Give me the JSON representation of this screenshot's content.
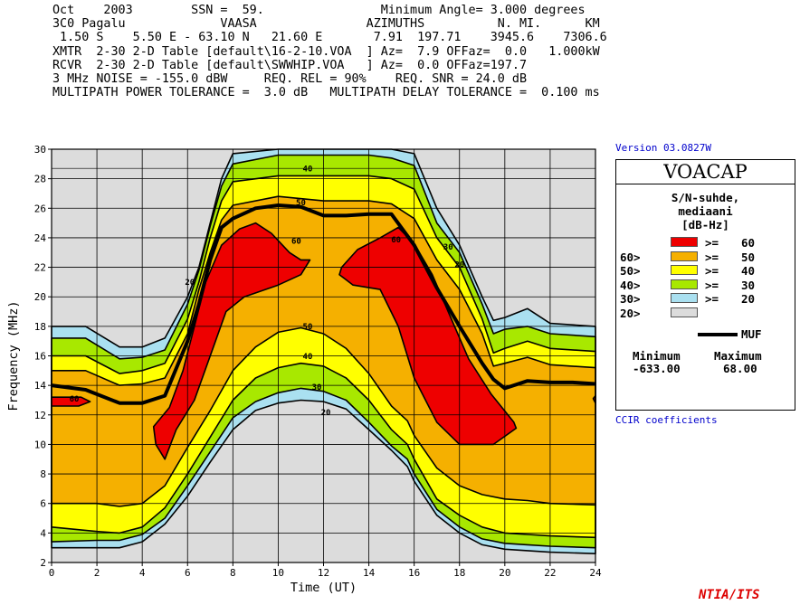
{
  "header": {
    "lines": [
      "Oct    2003        SSN =  59.                Minimum Angle= 3.000 degrees",
      "3C0 Pagalu             VAASA               AZIMUTHS          N. MI.      KM",
      " 1.50 S    5.50 E - 63.10 N   21.60 E       7.91  197.71    3945.6    7306.6",
      "XMTR  2-30 2-D Table [default\\16-2-10.VOA  ] Az=  7.9 OFFaz=  0.0   1.000kW",
      "RCVR  2-30 2-D Table [default\\SWWHIP.VOA   ] Az=  0.0 OFFaz=197.7",
      "3 MHz NOISE = -155.0 dBW     REQ. REL = 90%    REQ. SNR = 24.0 dB",
      "MULTIPATH POWER TOLERANCE =  3.0 dB   MULTIPATH DELAY TOLERANCE =  0.100 ms"
    ]
  },
  "side": {
    "version": "Version 03.0827W",
    "ccir": "CCIR coefficients",
    "ntia": "NTIA/ITS"
  },
  "legend": {
    "title": "VOACAP",
    "caption1": "S/N-suhde,",
    "caption2": "mediaani",
    "caption3": "[dB-Hz]",
    "rows": [
      {
        "left": "",
        "ge": ">=",
        "right": "60",
        "color": "#ee0000"
      },
      {
        "left": "60>",
        "ge": ">=",
        "right": "50",
        "color": "#f5b000"
      },
      {
        "left": "50>",
        "ge": ">=",
        "right": "40",
        "color": "#ffff00"
      },
      {
        "left": "40>",
        "ge": ">=",
        "right": "30",
        "color": "#a8e800"
      },
      {
        "left": "30>",
        "ge": ">=",
        "right": "20",
        "color": "#aae0f0"
      },
      {
        "left": "20>",
        "ge": "",
        "right": "",
        "color": "#dcdcdc"
      }
    ],
    "muf_label": "MUF",
    "min_label": "Minimum",
    "max_label": "Maximum",
    "min_value": "-633.00",
    "max_value": "68.00"
  },
  "chart_data": {
    "type": "heatmap",
    "xlabel": "Time (UT)",
    "ylabel": "Frequency (MHz)",
    "xlim": [
      0,
      24
    ],
    "ylim": [
      2,
      30
    ],
    "x_ticks": [
      0,
      2,
      4,
      6,
      8,
      10,
      12,
      14,
      16,
      18,
      20,
      22,
      24
    ],
    "y_ticks": [
      2,
      4,
      6,
      8,
      10,
      12,
      14,
      16,
      18,
      20,
      22,
      24,
      26,
      28,
      30
    ],
    "colors": {
      "bg": "#dcdcdc",
      "c20": "#aae0f0",
      "c30": "#a8e800",
      "c40": "#ffff00",
      "c50": "#f5b000",
      "c60": "#ee0000",
      "muf": "#000000"
    },
    "regions": [
      {
        "level": "20",
        "color_key": "c20",
        "upper": [
          [
            0,
            18
          ],
          [
            1.5,
            18
          ],
          [
            3,
            16.6
          ],
          [
            4,
            16.6
          ],
          [
            5,
            17.2
          ],
          [
            6,
            20
          ],
          [
            6.5,
            22
          ],
          [
            7,
            25
          ],
          [
            7.5,
            28
          ],
          [
            8,
            29.7
          ],
          [
            10,
            30
          ],
          [
            12,
            30
          ],
          [
            14,
            30
          ],
          [
            15,
            30
          ],
          [
            16,
            29.7
          ],
          [
            17,
            26
          ],
          [
            18,
            23.5
          ],
          [
            19,
            20
          ],
          [
            19.5,
            18.4
          ],
          [
            20,
            18.6
          ],
          [
            21,
            19.2
          ],
          [
            22,
            18.2
          ],
          [
            24,
            18
          ]
        ],
        "lower": [
          [
            0,
            3
          ],
          [
            2,
            3
          ],
          [
            3,
            3
          ],
          [
            4,
            3.4
          ],
          [
            5,
            4.6
          ],
          [
            6,
            6.5
          ],
          [
            7,
            8.8
          ],
          [
            8,
            11
          ],
          [
            9,
            12.3
          ],
          [
            10,
            12.8
          ],
          [
            11,
            13
          ],
          [
            12,
            12.9
          ],
          [
            13,
            12.4
          ],
          [
            14,
            11
          ],
          [
            15,
            9.6
          ],
          [
            15.7,
            8.5
          ],
          [
            16,
            7.5
          ],
          [
            17,
            5.2
          ],
          [
            18,
            4
          ],
          [
            19,
            3.2
          ],
          [
            20,
            2.9
          ],
          [
            21,
            2.8
          ],
          [
            22,
            2.7
          ],
          [
            24,
            2.6
          ]
        ]
      },
      {
        "level": "30",
        "color_key": "c30",
        "upper": [
          [
            0,
            17.2
          ],
          [
            1.5,
            17.2
          ],
          [
            3,
            15.8
          ],
          [
            4,
            15.9
          ],
          [
            5,
            16.4
          ],
          [
            6,
            19.5
          ],
          [
            6.5,
            21.8
          ],
          [
            7,
            24.8
          ],
          [
            7.5,
            27.5
          ],
          [
            8,
            29
          ],
          [
            10,
            29.6
          ],
          [
            12,
            29.6
          ],
          [
            14,
            29.6
          ],
          [
            15,
            29.4
          ],
          [
            16,
            28.9
          ],
          [
            17,
            25
          ],
          [
            18,
            23
          ],
          [
            19,
            19.5
          ],
          [
            19.5,
            17.5
          ],
          [
            20,
            17.8
          ],
          [
            21,
            18
          ],
          [
            22,
            17.5
          ],
          [
            24,
            17.3
          ]
        ],
        "lower": [
          [
            0,
            3.4
          ],
          [
            2,
            3.5
          ],
          [
            3,
            3.5
          ],
          [
            4,
            3.9
          ],
          [
            5,
            5
          ],
          [
            6,
            7.2
          ],
          [
            7,
            9.5
          ],
          [
            8,
            11.8
          ],
          [
            9,
            12.9
          ],
          [
            10,
            13.5
          ],
          [
            11,
            13.8
          ],
          [
            12,
            13.6
          ],
          [
            13,
            13
          ],
          [
            14,
            11.5
          ],
          [
            15,
            9.9
          ],
          [
            15.7,
            9
          ],
          [
            16,
            8
          ],
          [
            17,
            5.6
          ],
          [
            18,
            4.4
          ],
          [
            19,
            3.6
          ],
          [
            20,
            3.3
          ],
          [
            21,
            3.2
          ],
          [
            22,
            3.1
          ],
          [
            24,
            3
          ]
        ]
      },
      {
        "level": "40",
        "color_key": "c40",
        "upper": [
          [
            0,
            16
          ],
          [
            1.5,
            16
          ],
          [
            3,
            14.8
          ],
          [
            4,
            15
          ],
          [
            5,
            15.5
          ],
          [
            6,
            18.5
          ],
          [
            6.5,
            21
          ],
          [
            7,
            24
          ],
          [
            7.5,
            26.5
          ],
          [
            8,
            27.8
          ],
          [
            10,
            28.2
          ],
          [
            12,
            28.2
          ],
          [
            14,
            28.2
          ],
          [
            15,
            28
          ],
          [
            16,
            27.3
          ],
          [
            17,
            24
          ],
          [
            18,
            22
          ],
          [
            19,
            18.5
          ],
          [
            19.5,
            16.2
          ],
          [
            20,
            16.5
          ],
          [
            21,
            17
          ],
          [
            22,
            16.5
          ],
          [
            24,
            16.3
          ]
        ],
        "lower": [
          [
            0,
            4.4
          ],
          [
            2,
            4.1
          ],
          [
            3,
            4
          ],
          [
            4,
            4.4
          ],
          [
            5,
            5.7
          ],
          [
            6,
            8
          ],
          [
            7,
            10.5
          ],
          [
            8,
            13
          ],
          [
            9,
            14.5
          ],
          [
            10,
            15.2
          ],
          [
            11,
            15.5
          ],
          [
            12,
            15.3
          ],
          [
            13,
            14.5
          ],
          [
            14,
            13
          ],
          [
            15,
            11
          ],
          [
            15.7,
            10
          ],
          [
            16,
            9
          ],
          [
            17,
            6.3
          ],
          [
            18,
            5.2
          ],
          [
            19,
            4.4
          ],
          [
            20,
            4
          ],
          [
            21,
            3.9
          ],
          [
            22,
            3.8
          ],
          [
            24,
            3.7
          ]
        ]
      },
      {
        "level": "50",
        "color_key": "c50",
        "upper": [
          [
            0,
            15
          ],
          [
            1.5,
            15
          ],
          [
            3,
            14
          ],
          [
            4,
            14.1
          ],
          [
            5,
            14.5
          ],
          [
            6,
            17.5
          ],
          [
            6.5,
            20.5
          ],
          [
            7,
            23
          ],
          [
            7.5,
            25.2
          ],
          [
            8,
            26.2
          ],
          [
            10,
            26.8
          ],
          [
            12,
            26.5
          ],
          [
            14,
            26.5
          ],
          [
            15,
            26.3
          ],
          [
            16,
            25.3
          ],
          [
            17,
            22.5
          ],
          [
            18,
            20.5
          ],
          [
            19,
            17.5
          ],
          [
            19.5,
            15.3
          ],
          [
            20,
            15.5
          ],
          [
            21,
            15.9
          ],
          [
            22,
            15.4
          ],
          [
            24,
            15.2
          ]
        ],
        "lower": [
          [
            0,
            6
          ],
          [
            2,
            6
          ],
          [
            3,
            5.8
          ],
          [
            4,
            6
          ],
          [
            5,
            7.2
          ],
          [
            6,
            9.8
          ],
          [
            7,
            12.3
          ],
          [
            8,
            15
          ],
          [
            9,
            16.6
          ],
          [
            10,
            17.6
          ],
          [
            11,
            17.9
          ],
          [
            12,
            17.5
          ],
          [
            13,
            16.5
          ],
          [
            14,
            14.8
          ],
          [
            15,
            12.6
          ],
          [
            15.7,
            11.6
          ],
          [
            16,
            10.6
          ],
          [
            17,
            8.4
          ],
          [
            18,
            7.2
          ],
          [
            19,
            6.6
          ],
          [
            20,
            6.3
          ],
          [
            21,
            6.2
          ],
          [
            22,
            6
          ],
          [
            24,
            5.9
          ]
        ]
      },
      {
        "level": "60a",
        "color_key": "c60",
        "closed": [
          [
            4.5,
            11.2
          ],
          [
            5.2,
            12.5
          ],
          [
            5.8,
            15
          ],
          [
            6.3,
            18
          ],
          [
            6.8,
            21
          ],
          [
            7.5,
            23.5
          ],
          [
            8.3,
            24.6
          ],
          [
            9,
            25
          ],
          [
            9.7,
            24.3
          ],
          [
            10.5,
            23
          ],
          [
            11,
            22.5
          ],
          [
            11.4,
            22.5
          ],
          [
            11,
            21.5
          ],
          [
            10,
            20.8
          ],
          [
            8.5,
            20
          ],
          [
            7.7,
            19
          ],
          [
            7,
            16
          ],
          [
            6.3,
            13
          ],
          [
            5.5,
            11
          ],
          [
            5,
            9
          ],
          [
            4.6,
            10
          ]
        ]
      },
      {
        "level": "60b",
        "color_key": "c60",
        "closed": [
          [
            12.8,
            22
          ],
          [
            13.5,
            23.2
          ],
          [
            14.5,
            24
          ],
          [
            15.3,
            24.7
          ],
          [
            16,
            23.6
          ],
          [
            16.8,
            21.5
          ],
          [
            17.5,
            19
          ],
          [
            18.4,
            15.8
          ],
          [
            19.4,
            13.4
          ],
          [
            20.4,
            11.5
          ],
          [
            20.5,
            11.1
          ],
          [
            19.5,
            10
          ],
          [
            18,
            10
          ],
          [
            17,
            11.5
          ],
          [
            16,
            14.5
          ],
          [
            15.3,
            18
          ],
          [
            14.5,
            20.5
          ],
          [
            13.3,
            20.8
          ],
          [
            12.7,
            21.5
          ]
        ]
      },
      {
        "level": "60c",
        "color_key": "c60",
        "closed": [
          [
            0,
            13.2
          ],
          [
            1.3,
            13.2
          ],
          [
            1.7,
            12.9
          ],
          [
            1.2,
            12.6
          ],
          [
            0,
            12.6
          ]
        ]
      },
      {
        "level": "60d",
        "color_key": "c60",
        "closed": [
          [
            24,
            13.3
          ],
          [
            23.9,
            13.1
          ],
          [
            24,
            12.8
          ]
        ]
      }
    ],
    "muf": [
      [
        0,
        14
      ],
      [
        1.5,
        13.7
      ],
      [
        3,
        12.8
      ],
      [
        4,
        12.8
      ],
      [
        5,
        13.3
      ],
      [
        6,
        17
      ],
      [
        6.5,
        19.5
      ],
      [
        7,
        22.5
      ],
      [
        7.5,
        24.7
      ],
      [
        8,
        25.3
      ],
      [
        9,
        26
      ],
      [
        10,
        26.2
      ],
      [
        11,
        26.1
      ],
      [
        12,
        25.5
      ],
      [
        13,
        25.5
      ],
      [
        14,
        25.6
      ],
      [
        15,
        25.6
      ],
      [
        16,
        23.5
      ],
      [
        17,
        20.6
      ],
      [
        18,
        18
      ],
      [
        19,
        15.5
      ],
      [
        19.5,
        14.4
      ],
      [
        20,
        13.8
      ],
      [
        21,
        14.3
      ],
      [
        22,
        14.2
      ],
      [
        23,
        14.2
      ],
      [
        24,
        14.1
      ]
    ],
    "contour_labels": [
      {
        "text": "40",
        "x": 11.3,
        "y": 28.5
      },
      {
        "text": "50",
        "x": 11.0,
        "y": 26.2
      },
      {
        "text": "60",
        "x": 10.8,
        "y": 23.6
      },
      {
        "text": "60",
        "x": 15.2,
        "y": 23.7
      },
      {
        "text": "30",
        "x": 17.5,
        "y": 23.2
      },
      {
        "text": "20",
        "x": 18.0,
        "y": 22.0
      },
      {
        "text": "20",
        "x": 6.1,
        "y": 20.8
      },
      {
        "text": "50",
        "x": 11.3,
        "y": 17.8
      },
      {
        "text": "40",
        "x": 11.3,
        "y": 15.8
      },
      {
        "text": "30",
        "x": 11.7,
        "y": 13.7
      },
      {
        "text": "20",
        "x": 12.1,
        "y": 12.0
      },
      {
        "text": "60",
        "x": 1.0,
        "y": 12.9
      }
    ]
  }
}
